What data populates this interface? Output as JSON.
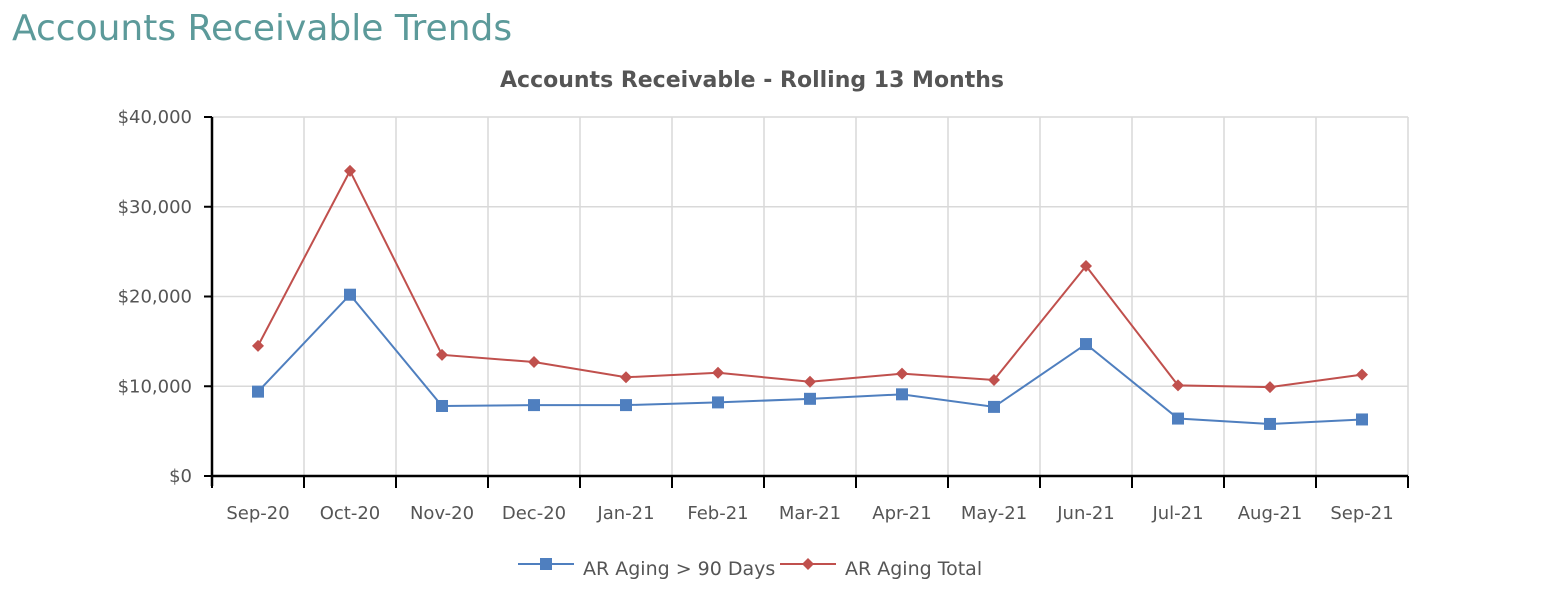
{
  "page": {
    "title": "Accounts Receivable Trends"
  },
  "chart_data": {
    "type": "line",
    "title": "Accounts Receivable - Rolling 13 Months",
    "xlabel": "",
    "ylabel": "",
    "categories": [
      "Sep-20",
      "Oct-20",
      "Nov-20",
      "Dec-20",
      "Jan-21",
      "Feb-21",
      "Mar-21",
      "Apr-21",
      "May-21",
      "Jun-21",
      "Jul-21",
      "Aug-21",
      "Sep-21"
    ],
    "ylim": [
      0,
      40000
    ],
    "yticks": [
      0,
      10000,
      20000,
      30000,
      40000
    ],
    "ytick_labels": [
      "$0",
      "$10,000",
      "$20,000",
      "$30,000",
      "$40,000"
    ],
    "grid": true,
    "legend_position": "bottom-center",
    "series": [
      {
        "name": "AR Aging > 90 Days",
        "color": "#4f7fbf",
        "marker": "square",
        "values": [
          9400,
          20200,
          7800,
          7900,
          7900,
          8200,
          8600,
          9100,
          7700,
          14700,
          6400,
          5800,
          6300
        ]
      },
      {
        "name": "AR Aging Total",
        "color": "#c0504d",
        "marker": "diamond",
        "values": [
          14500,
          34000,
          13500,
          12700,
          11000,
          11500,
          10500,
          11400,
          10700,
          23400,
          10100,
          9900,
          11300
        ]
      }
    ]
  }
}
